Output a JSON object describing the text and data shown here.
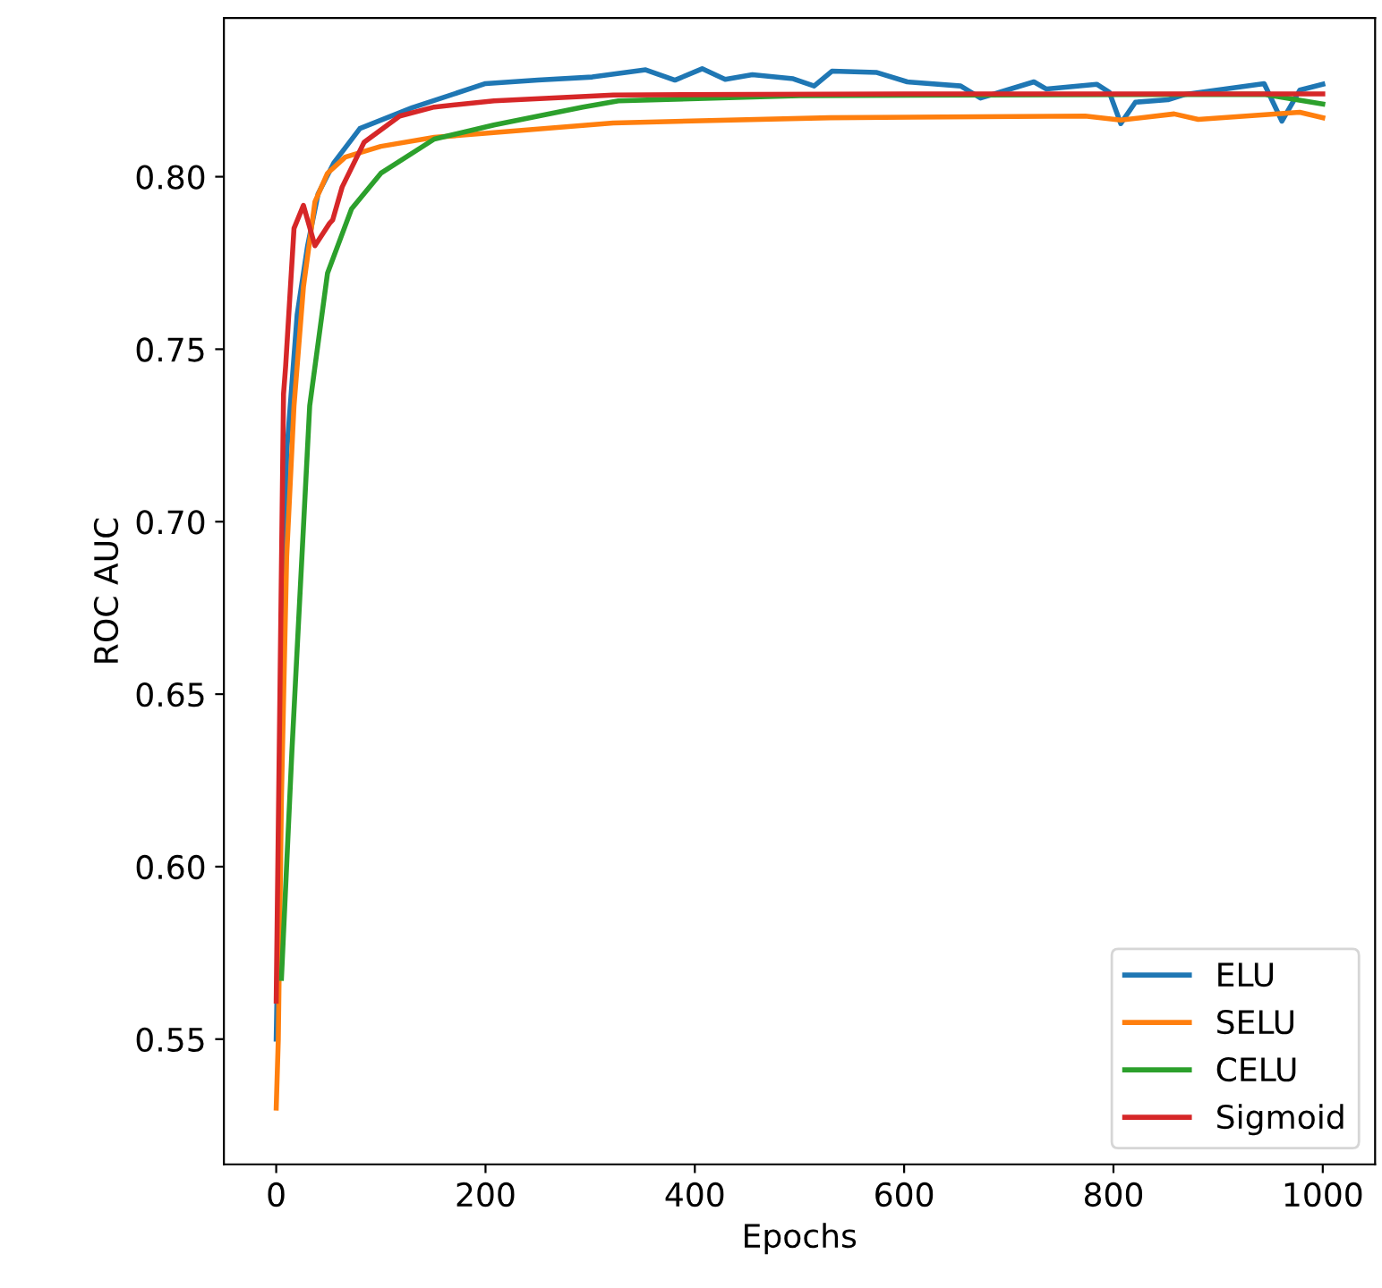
{
  "chart_data": {
    "type": "line",
    "xlabel": "Epochs",
    "ylabel": "ROC AUC",
    "xlim": [
      -50,
      1050
    ],
    "ylim": [
      0.5137,
      0.846
    ],
    "xticks": [
      0,
      200,
      400,
      600,
      800,
      1000
    ],
    "yticks": [
      0.55,
      {
        "value": 0.6,
        "label": "0.60"
      },
      0.65,
      {
        "value": 0.7,
        "label": "0.70"
      },
      0.75,
      {
        "value": 0.8,
        "label": "0.80"
      }
    ],
    "legend": "bottom right",
    "grid": false,
    "series": [
      {
        "name": "ELU",
        "color": "#1f77b4",
        "x": [
          0,
          10,
          20,
          30,
          40,
          55,
          80,
          130,
          200,
          250,
          302,
          353,
          381,
          407,
          429,
          455,
          494,
          514,
          531,
          574,
          603,
          654,
          673,
          698,
          724,
          736,
          784,
          796,
          807,
          821,
          852,
          869,
          944,
          961,
          978,
          1000
        ],
        "values": [
          0.55,
          0.72,
          0.76,
          0.78,
          0.795,
          0.804,
          0.814,
          0.82,
          0.827,
          0.828,
          0.8289,
          0.831,
          0.828,
          0.8313,
          0.8282,
          0.8296,
          0.8284,
          0.8263,
          0.8306,
          0.8302,
          0.8275,
          0.8263,
          0.8228,
          0.8251,
          0.8275,
          0.8254,
          0.8268,
          0.8245,
          0.8154,
          0.8216,
          0.8223,
          0.8239,
          0.827,
          0.8161,
          0.8251,
          0.8268
        ]
      },
      {
        "name": "SELU",
        "color": "#ff7f0e",
        "x": [
          0,
          2,
          5,
          10,
          17,
          26,
          37,
          49,
          66,
          100,
          151,
          237,
          322,
          529,
          773,
          807,
          858,
          881,
          978,
          1000
        ],
        "values": [
          0.53,
          0.55,
          0.62,
          0.69,
          0.7336,
          0.768,
          0.7927,
          0.801,
          0.8057,
          0.8088,
          0.8114,
          0.8135,
          0.8156,
          0.8171,
          0.8176,
          0.8164,
          0.8182,
          0.8166,
          0.8187,
          0.8171
        ]
      },
      {
        "name": "CELU",
        "color": "#2ca02c",
        "x": [
          5,
          15,
          32,
          49,
          72,
          100,
          151,
          208,
          293,
          327,
          500,
          944,
          1000
        ],
        "values": [
          0.5676,
          0.6335,
          0.7336,
          0.772,
          0.7907,
          0.801,
          0.8109,
          0.815,
          0.8202,
          0.822,
          0.8235,
          0.8239,
          0.8211
        ]
      },
      {
        "name": "Sigmoid",
        "color": "#d62728",
        "x": [
          0,
          7,
          9,
          17,
          26,
          37,
          51,
          54,
          63,
          84,
          118,
          151,
          208,
          322,
          600,
          1000
        ],
        "values": [
          0.561,
          0.737,
          0.745,
          0.785,
          0.7917,
          0.78,
          0.7865,
          0.7875,
          0.797,
          0.81,
          0.8176,
          0.8202,
          0.822,
          0.8237,
          0.824,
          0.824
        ]
      }
    ]
  }
}
